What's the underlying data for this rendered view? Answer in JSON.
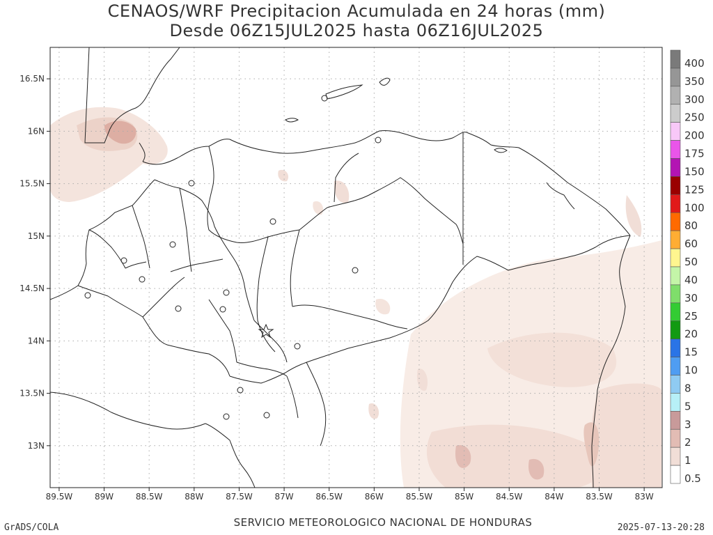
{
  "title_line1": "CENAOS/WRF Precipitacion Acumulada en 24 horas (mm)",
  "title_line2": "Desde 06Z15JUL2025 hasta 06Z16JUL2025",
  "footer_left": "GrADS/COLA",
  "footer_center": "SERVICIO METEOROLOGICO NACIONAL DE HONDURAS",
  "footer_right": "2025-07-13-20:28",
  "map": {
    "lon_labels": [
      "89.5W",
      "89W",
      "88.5W",
      "88W",
      "87.5W",
      "87W",
      "86.5W",
      "86W",
      "85.5W",
      "85W",
      "84.5W",
      "84W",
      "83.5W",
      "83W"
    ],
    "lat_labels": [
      "16.5N",
      "16N",
      "15.5N",
      "15N",
      "14.5N",
      "14N",
      "13.5N",
      "13N"
    ],
    "lon_range": [
      -89.6,
      -82.8
    ],
    "lat_range": [
      12.6,
      16.8
    ],
    "grid": true
  },
  "colorbar": {
    "labels": [
      "400",
      "350",
      "300",
      "250",
      "200",
      "175",
      "150",
      "125",
      "100",
      "80",
      "60",
      "50",
      "40",
      "30",
      "25",
      "20",
      "15",
      "10",
      "8",
      "5",
      "3",
      "2",
      "1",
      "0.5"
    ],
    "colors": [
      "#7a7a7a",
      "#969696",
      "#b1b1b1",
      "#cccccc",
      "#f8c8f8",
      "#ea55ea",
      "#b314b3",
      "#9a0000",
      "#e11a1a",
      "#ff6a00",
      "#ffad33",
      "#fff68f",
      "#c4f5a8",
      "#7fde6b",
      "#33cc33",
      "#129a12",
      "#2a74e6",
      "#4f9df2",
      "#8fcbf2",
      "#b7f0f7",
      "#c89a9a",
      "#e2bcb4",
      "#f1ded7",
      "#ffffff"
    ]
  }
}
